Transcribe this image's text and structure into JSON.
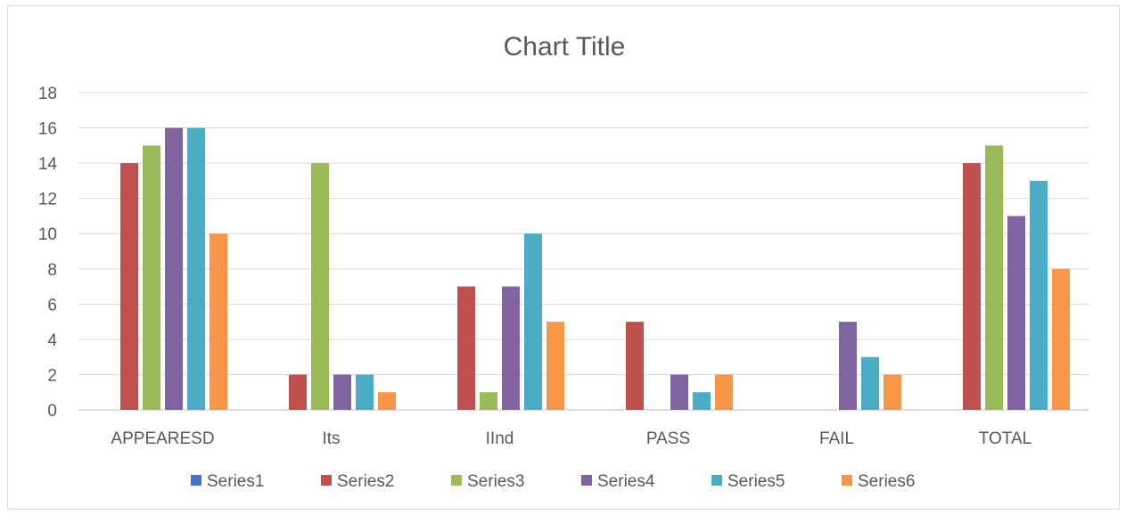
{
  "chart_data": {
    "type": "bar",
    "title": "Chart Title",
    "categories": [
      "APPEARESD",
      "Its",
      "IInd",
      "PASS",
      "FAIL",
      "TOTAL"
    ],
    "series": [
      {
        "name": "Series1",
        "color": "#4472C4",
        "values": [
          0,
          0,
          0,
          0,
          0,
          0
        ]
      },
      {
        "name": "Series2",
        "color": "#C0504D",
        "values": [
          14,
          2,
          7,
          5,
          0,
          14
        ]
      },
      {
        "name": "Series3",
        "color": "#9BBB59",
        "values": [
          15,
          14,
          1,
          0,
          0,
          15
        ]
      },
      {
        "name": "Series4",
        "color": "#8064A2",
        "values": [
          16,
          2,
          7,
          2,
          5,
          11
        ]
      },
      {
        "name": "Series5",
        "color": "#4BACC6",
        "values": [
          16,
          2,
          10,
          1,
          3,
          13
        ]
      },
      {
        "name": "Series6",
        "color": "#F79646",
        "values": [
          10,
          1,
          5,
          2,
          2,
          8
        ]
      }
    ],
    "ylim": [
      0,
      18
    ],
    "yticks": [
      0,
      2,
      4,
      6,
      8,
      10,
      12,
      14,
      16,
      18
    ],
    "grid": true,
    "legend": "bottom"
  }
}
